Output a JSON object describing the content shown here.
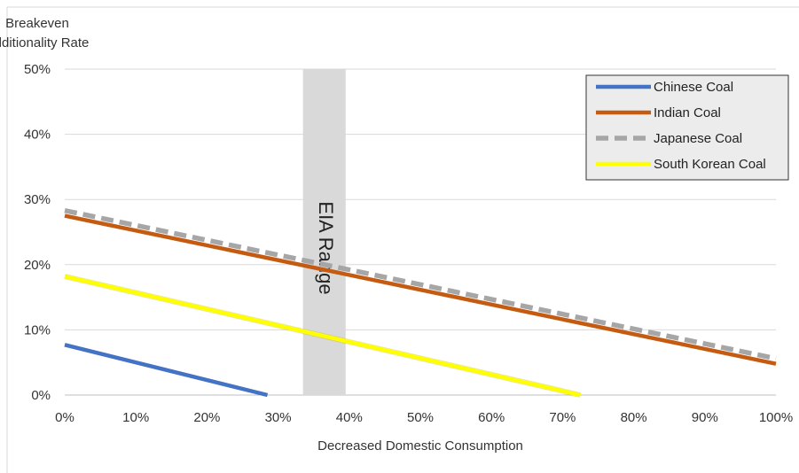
{
  "chart_data": {
    "type": "line",
    "title": "",
    "xlabel": "Decreased Domestic Consumption",
    "ylabel_lines": [
      "Breakeven",
      "Additionality Rate"
    ],
    "x_ticks": [
      "0%",
      "10%",
      "20%",
      "30%",
      "40%",
      "50%",
      "60%",
      "70%",
      "80%",
      "90%",
      "100%"
    ],
    "y_ticks": [
      "0%",
      "10%",
      "20%",
      "30%",
      "40%",
      "50%"
    ],
    "xlim": [
      0,
      100
    ],
    "ylim": [
      0,
      50
    ],
    "grid": "horizontal",
    "legend_position": "top-right",
    "shaded_band": {
      "label": "EIA Range",
      "x_range": [
        33.5,
        39.5
      ],
      "color": "#d9d9d9"
    },
    "series": [
      {
        "name": "Chinese Coal",
        "color": "#4472c4",
        "style": "solid",
        "x": [
          0,
          28.5
        ],
        "y": [
          7.7,
          0
        ]
      },
      {
        "name": "Indian Coal",
        "color": "#c55a11",
        "style": "solid",
        "x": [
          0,
          100
        ],
        "y": [
          27.5,
          4.8
        ]
      },
      {
        "name": "Japanese Coal",
        "color": "#a6a6a6",
        "style": "dashed",
        "x": [
          0,
          100
        ],
        "y": [
          28.3,
          5.6
        ]
      },
      {
        "name": "South Korean Coal",
        "color": "#ffff00",
        "style": "solid",
        "x": [
          0,
          72.5
        ],
        "y": [
          18.2,
          0
        ]
      }
    ]
  }
}
